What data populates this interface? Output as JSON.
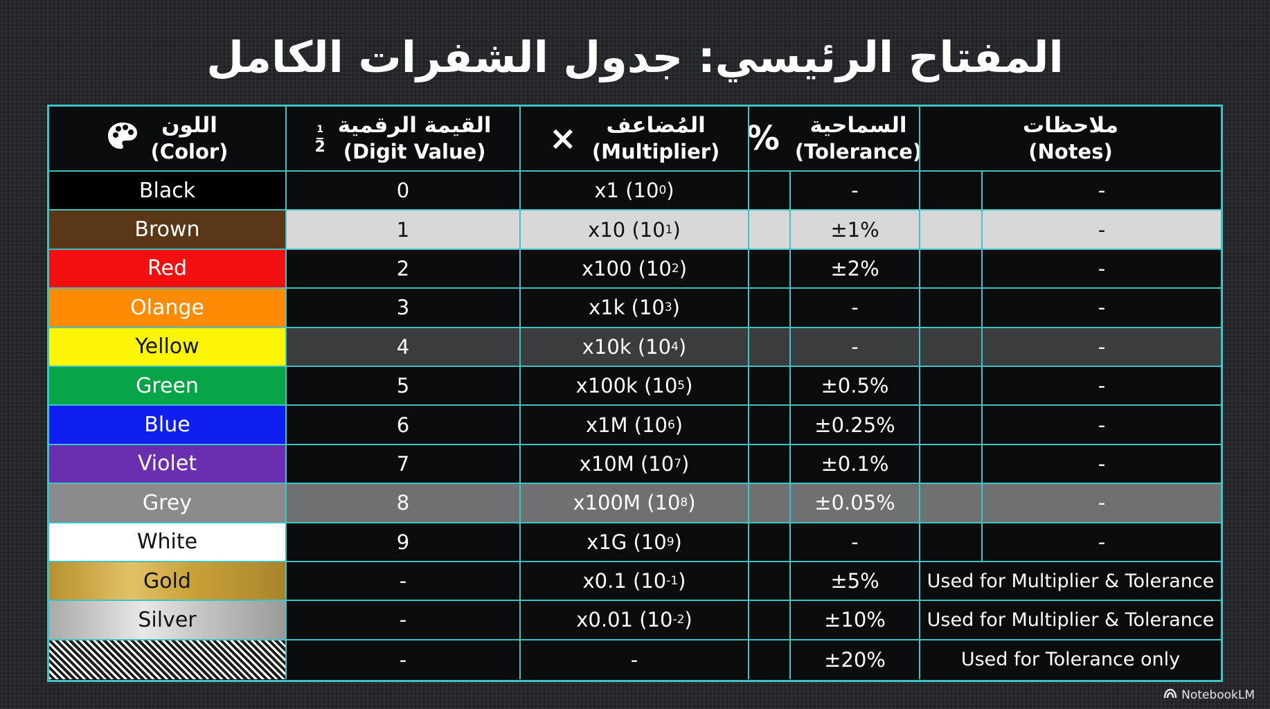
{
  "title": "المفتاح الرئيسي: جدول الشفرات الكامل",
  "headers": {
    "color_ar": "اللون",
    "color_en": "(Color)",
    "digit_ar": "القيمة الرقمية",
    "digit_en": "(Digit Value)",
    "digit_icon_top": "1",
    "digit_icon_bottom": "2",
    "mult_ar": "المُضاعف",
    "mult_en": "(Multiplier)",
    "mult_icon": "×",
    "tol_ar": "السماحية",
    "tol_en": "(Tolerance)",
    "tol_icon": "%",
    "notes_ar": "ملاحظات",
    "notes_en": "(Notes)",
    "color_icon_name": "palette-icon"
  },
  "rows": [
    {
      "color": "Black",
      "swatch": "#000000",
      "text": "#ffffff",
      "digit": "0",
      "mult_base": "x1 (10",
      "mult_exp": "0",
      "tol": "-",
      "notes": "-"
    },
    {
      "color": "Brown",
      "swatch": "#5a3716",
      "text": "#ffffff",
      "digit": "1",
      "mult_base": "x10 (10",
      "mult_exp": "1",
      "tol": "±1%",
      "notes": "-"
    },
    {
      "color": "Red",
      "swatch": "#f20f10",
      "text": "#ffffff",
      "digit": "2",
      "mult_base": "x100 (10",
      "mult_exp": "2",
      "tol": "±2%",
      "notes": "-"
    },
    {
      "color": "Olange",
      "swatch": "#ff8a04",
      "text": "#ffffff",
      "digit": "3",
      "mult_base": "x1k (10",
      "mult_exp": "3",
      "tol": "-",
      "notes": "-"
    },
    {
      "color": "Yellow",
      "swatch": "#fbf506",
      "text": "#111111",
      "digit": "4",
      "mult_base": "x10k (10",
      "mult_exp": "4",
      "tol": "-",
      "notes": "-"
    },
    {
      "color": "Green",
      "swatch": "#08a448",
      "text": "#ffffff",
      "digit": "5",
      "mult_base": "x100k (10",
      "mult_exp": "5",
      "tol": "±0.5%",
      "notes": "-"
    },
    {
      "color": "Blue",
      "swatch": "#0e1ff0",
      "text": "#ffffff",
      "digit": "6",
      "mult_base": "x1M (10",
      "mult_exp": "6",
      "tol": "±0.25%",
      "notes": "-"
    },
    {
      "color": "Violet",
      "swatch": "#6a2fb0",
      "text": "#ffffff",
      "digit": "7",
      "mult_base": "x10M (10",
      "mult_exp": "7",
      "tol": "±0.1%",
      "notes": "-"
    },
    {
      "color": "Grey",
      "swatch": "#8a8b8c",
      "text": "#ffffff",
      "digit": "8",
      "mult_base": "x100M (10",
      "mult_exp": "8",
      "tol": "±0.05%",
      "notes": "-"
    },
    {
      "color": "White",
      "swatch": "#ffffff",
      "text": "#111111",
      "digit": "9",
      "mult_base": "x1G (10",
      "mult_exp": "9",
      "tol": "-",
      "notes": "-"
    },
    {
      "color": "Gold",
      "swatch": "#c9a23a",
      "text": "#111111",
      "digit": "-",
      "mult_base": "x0.1 (10",
      "mult_exp": "-1",
      "tol": "±5%",
      "notes": "Used for Multiplier & Tolerance"
    },
    {
      "color": "Silver",
      "swatch": "#c4c4c4",
      "text": "#111111",
      "digit": "-",
      "mult_base": "x0.01 (10",
      "mult_exp": "-2",
      "tol": "±10%",
      "notes": "Used for Multiplier & Tolerance"
    },
    {
      "color": "",
      "swatch": "hatched",
      "text": "#ffffff",
      "digit": "-",
      "mult_base": "-",
      "mult_exp": "",
      "tol": "±20%",
      "notes": "Used for Tolerance only"
    }
  ],
  "footer": {
    "brand": "NotebookLM",
    "icon_name": "notebooklm-logo-icon"
  },
  "colors": {
    "accent_border": "#3fc4c6",
    "background": "#26282b",
    "table_bg": "#0b0c0d"
  }
}
